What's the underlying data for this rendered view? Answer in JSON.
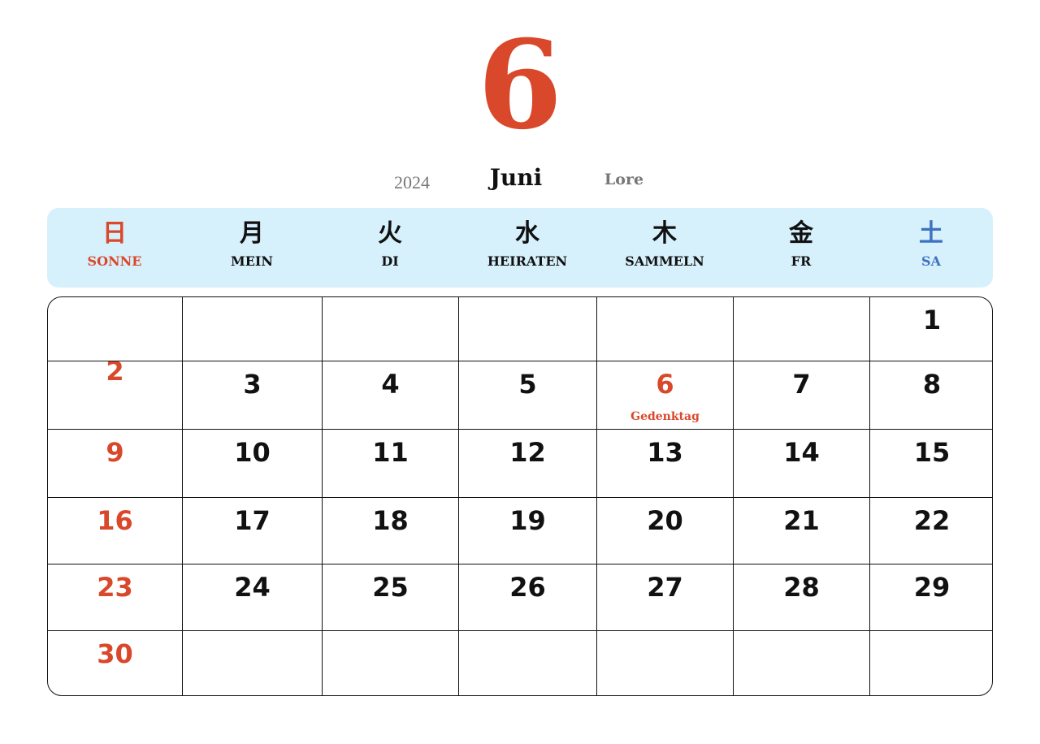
{
  "colors": {
    "sunday": "#d9482b",
    "saturday": "#3d72c0",
    "weekday": "#111111",
    "header_bg": "#d6f0fc"
  },
  "title": {
    "month_number": "6",
    "year": "2024",
    "month_name": "Juni",
    "label": "Lore"
  },
  "weekdays": [
    {
      "kanji": "日",
      "name": "SONNE",
      "type": "sunday"
    },
    {
      "kanji": "月",
      "name": "MEIN",
      "type": "weekday"
    },
    {
      "kanji": "火",
      "name": "DI",
      "type": "weekday"
    },
    {
      "kanji": "水",
      "name": "HEIRATEN",
      "type": "weekday"
    },
    {
      "kanji": "木",
      "name": "SAMMELN",
      "type": "weekday"
    },
    {
      "kanji": "金",
      "name": "FR",
      "type": "weekday"
    },
    {
      "kanji": "土",
      "name": "SA",
      "type": "saturday"
    }
  ],
  "weeks": [
    [
      "",
      "",
      "",
      "",
      "",
      "",
      "1"
    ],
    [
      "2",
      "3",
      "4",
      "5",
      "6",
      "7",
      "8"
    ],
    [
      "9",
      "10",
      "11",
      "12",
      "13",
      "14",
      "15"
    ],
    [
      "16",
      "17",
      "18",
      "19",
      "20",
      "21",
      "22"
    ],
    [
      "23",
      "24",
      "25",
      "26",
      "27",
      "28",
      "29"
    ],
    [
      "30",
      "",
      "",
      "",
      "",
      "",
      ""
    ]
  ],
  "holidays": [
    {
      "day": "6",
      "label": "Gedenktag"
    }
  ]
}
